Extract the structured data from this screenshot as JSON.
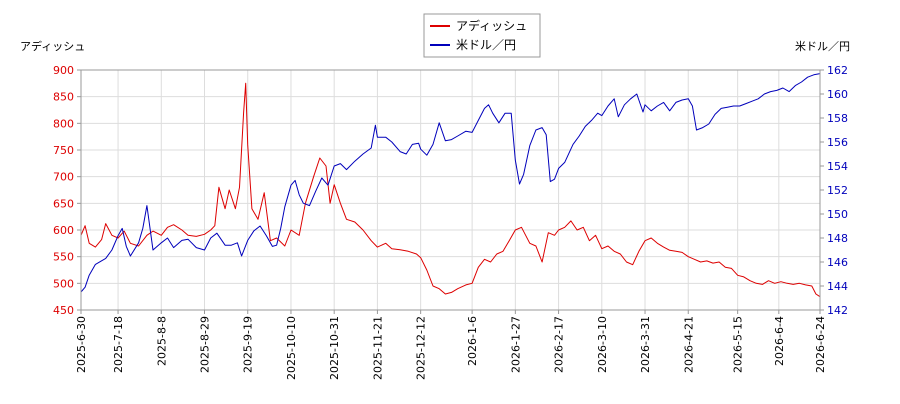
{
  "chart_data": {
    "type": "line",
    "legend": {
      "placement": "top-center",
      "entries": [
        {
          "name": "アディッシュ",
          "color": "#dd0000"
        },
        {
          "name": "米ドル／円",
          "color": "#0000bb"
        }
      ]
    },
    "left_axis": {
      "label": "アディッシュ",
      "range": [
        450,
        900
      ],
      "ticks": [
        450,
        500,
        550,
        600,
        650,
        700,
        750,
        800,
        850,
        900
      ],
      "tick_color": "#dd0000"
    },
    "right_axis": {
      "label": "米ドル／円",
      "range": [
        142,
        162
      ],
      "ticks": [
        142,
        144,
        146,
        148,
        150,
        152,
        154,
        156,
        158,
        160,
        162
      ],
      "tick_color": "#0000bb"
    },
    "x_axis": {
      "range": [
        "2025-06-30",
        "2026-06-24"
      ],
      "tick_labels": [
        "2025-6-30",
        "2025-7-18",
        "2025-8-8",
        "2025-8-29",
        "2025-9-19",
        "2025-10-10",
        "2025-10-31",
        "2025-11-21",
        "2025-12-12",
        "2026-1-6",
        "2026-1-27",
        "2026-2-17",
        "2026-3-10",
        "2026-3-31",
        "2026-4-21",
        "2026-5-15",
        "2026-6-4",
        "2026-6-24"
      ],
      "tick_dates": [
        "2025-06-30",
        "2025-07-18",
        "2025-08-08",
        "2025-08-29",
        "2025-09-19",
        "2025-10-10",
        "2025-10-31",
        "2025-11-21",
        "2025-12-12",
        "2026-01-06",
        "2026-01-27",
        "2026-02-17",
        "2026-03-10",
        "2026-03-31",
        "2026-04-21",
        "2026-05-15",
        "2026-06-04",
        "2026-06-24"
      ]
    },
    "grid": true,
    "series": [
      {
        "name": "アディッシュ",
        "axis": "left",
        "color": "#dd0000",
        "points": [
          [
            "2025-06-30",
            590
          ],
          [
            "2025-07-02",
            608
          ],
          [
            "2025-07-04",
            575
          ],
          [
            "2025-07-07",
            568
          ],
          [
            "2025-07-10",
            582
          ],
          [
            "2025-07-12",
            612
          ],
          [
            "2025-07-15",
            590
          ],
          [
            "2025-07-18",
            585
          ],
          [
            "2025-07-21",
            598
          ],
          [
            "2025-07-24",
            575
          ],
          [
            "2025-07-28",
            570
          ],
          [
            "2025-08-01",
            590
          ],
          [
            "2025-08-04",
            598
          ],
          [
            "2025-08-08",
            590
          ],
          [
            "2025-08-11",
            605
          ],
          [
            "2025-08-14",
            610
          ],
          [
            "2025-08-18",
            600
          ],
          [
            "2025-08-21",
            590
          ],
          [
            "2025-08-25",
            588
          ],
          [
            "2025-08-29",
            592
          ],
          [
            "2025-09-01",
            600
          ],
          [
            "2025-09-03",
            608
          ],
          [
            "2025-09-05",
            680
          ],
          [
            "2025-09-08",
            640
          ],
          [
            "2025-09-10",
            675
          ],
          [
            "2025-09-13",
            640
          ],
          [
            "2025-09-15",
            680
          ],
          [
            "2025-09-17",
            820
          ],
          [
            "2025-09-18",
            875
          ],
          [
            "2025-09-19",
            760
          ],
          [
            "2025-09-21",
            640
          ],
          [
            "2025-09-24",
            620
          ],
          [
            "2025-09-27",
            670
          ],
          [
            "2025-09-30",
            580
          ],
          [
            "2025-10-03",
            585
          ],
          [
            "2025-10-07",
            570
          ],
          [
            "2025-10-10",
            600
          ],
          [
            "2025-10-14",
            590
          ],
          [
            "2025-10-17",
            650
          ],
          [
            "2025-10-21",
            700
          ],
          [
            "2025-10-24",
            735
          ],
          [
            "2025-10-27",
            720
          ],
          [
            "2025-10-29",
            650
          ],
          [
            "2025-10-31",
            685
          ],
          [
            "2025-11-03",
            650
          ],
          [
            "2025-11-06",
            620
          ],
          [
            "2025-11-10",
            615
          ],
          [
            "2025-11-14",
            600
          ],
          [
            "2025-11-18",
            580
          ],
          [
            "2025-11-21",
            568
          ],
          [
            "2025-11-25",
            575
          ],
          [
            "2025-11-28",
            565
          ],
          [
            "2025-12-02",
            563
          ],
          [
            "2025-12-06",
            560
          ],
          [
            "2025-12-10",
            555
          ],
          [
            "2025-12-12",
            548
          ],
          [
            "2025-12-15",
            525
          ],
          [
            "2025-12-18",
            495
          ],
          [
            "2025-12-21",
            490
          ],
          [
            "2025-12-24",
            480
          ],
          [
            "2025-12-27",
            483
          ],
          [
            "2025-12-30",
            490
          ],
          [
            "2026-01-03",
            497
          ],
          [
            "2026-01-06",
            500
          ],
          [
            "2026-01-09",
            530
          ],
          [
            "2026-01-12",
            545
          ],
          [
            "2026-01-15",
            540
          ],
          [
            "2026-01-18",
            555
          ],
          [
            "2026-01-21",
            560
          ],
          [
            "2026-01-24",
            580
          ],
          [
            "2026-01-27",
            600
          ],
          [
            "2026-01-30",
            605
          ],
          [
            "2026-02-03",
            575
          ],
          [
            "2026-02-06",
            570
          ],
          [
            "2026-02-09",
            540
          ],
          [
            "2026-02-12",
            595
          ],
          [
            "2026-02-15",
            590
          ],
          [
            "2026-02-17",
            600
          ],
          [
            "2026-02-20",
            605
          ],
          [
            "2026-02-23",
            617
          ],
          [
            "2026-02-26",
            600
          ],
          [
            "2026-03-01",
            605
          ],
          [
            "2026-03-04",
            580
          ],
          [
            "2026-03-07",
            590
          ],
          [
            "2026-03-10",
            565
          ],
          [
            "2026-03-13",
            570
          ],
          [
            "2026-03-16",
            560
          ],
          [
            "2026-03-19",
            555
          ],
          [
            "2026-03-22",
            540
          ],
          [
            "2026-03-25",
            535
          ],
          [
            "2026-03-28",
            560
          ],
          [
            "2026-03-31",
            580
          ],
          [
            "2026-04-03",
            585
          ],
          [
            "2026-04-06",
            575
          ],
          [
            "2026-04-09",
            568
          ],
          [
            "2026-04-12",
            562
          ],
          [
            "2026-04-15",
            560
          ],
          [
            "2026-04-18",
            558
          ],
          [
            "2026-04-21",
            550
          ],
          [
            "2026-04-24",
            545
          ],
          [
            "2026-04-27",
            540
          ],
          [
            "2026-04-30",
            542
          ],
          [
            "2026-05-03",
            538
          ],
          [
            "2026-05-06",
            540
          ],
          [
            "2026-05-09",
            530
          ],
          [
            "2026-05-12",
            528
          ],
          [
            "2026-05-15",
            515
          ],
          [
            "2026-05-18",
            512
          ],
          [
            "2026-05-21",
            505
          ],
          [
            "2026-05-24",
            500
          ],
          [
            "2026-05-27",
            498
          ],
          [
            "2026-05-30",
            505
          ],
          [
            "2026-06-02",
            500
          ],
          [
            "2026-06-05",
            503
          ],
          [
            "2026-06-08",
            500
          ],
          [
            "2026-06-11",
            498
          ],
          [
            "2026-06-14",
            500
          ],
          [
            "2026-06-17",
            497
          ],
          [
            "2026-06-20",
            495
          ],
          [
            "2026-06-22",
            480
          ],
          [
            "2026-06-24",
            475
          ],
          [
            "2026-06-26",
            485
          ]
        ]
      },
      {
        "name": "米ドル／円",
        "axis": "right",
        "color": "#0000bb",
        "points": [
          [
            "2025-06-30",
            143.5
          ],
          [
            "2025-07-02",
            143.9
          ],
          [
            "2025-07-04",
            144.9
          ],
          [
            "2025-07-07",
            145.8
          ],
          [
            "2025-07-10",
            146.1
          ],
          [
            "2025-07-12",
            146.3
          ],
          [
            "2025-07-15",
            147.0
          ],
          [
            "2025-07-18",
            148.2
          ],
          [
            "2025-07-20",
            148.8
          ],
          [
            "2025-07-22",
            147.3
          ],
          [
            "2025-07-24",
            146.5
          ],
          [
            "2025-07-28",
            147.6
          ],
          [
            "2025-07-30",
            148.8
          ],
          [
            "2025-08-01",
            150.7
          ],
          [
            "2025-08-04",
            147.0
          ],
          [
            "2025-08-08",
            147.6
          ],
          [
            "2025-08-11",
            148.0
          ],
          [
            "2025-08-14",
            147.2
          ],
          [
            "2025-08-18",
            147.8
          ],
          [
            "2025-08-21",
            147.9
          ],
          [
            "2025-08-25",
            147.2
          ],
          [
            "2025-08-29",
            147.0
          ],
          [
            "2025-09-01",
            148.0
          ],
          [
            "2025-09-04",
            148.4
          ],
          [
            "2025-09-08",
            147.4
          ],
          [
            "2025-09-11",
            147.4
          ],
          [
            "2025-09-14",
            147.6
          ],
          [
            "2025-09-16",
            146.5
          ],
          [
            "2025-09-19",
            147.8
          ],
          [
            "2025-09-22",
            148.6
          ],
          [
            "2025-09-25",
            149.0
          ],
          [
            "2025-09-28",
            148.2
          ],
          [
            "2025-10-01",
            147.3
          ],
          [
            "2025-10-03",
            147.4
          ],
          [
            "2025-10-05",
            148.8
          ],
          [
            "2025-10-07",
            150.6
          ],
          [
            "2025-10-10",
            152.4
          ],
          [
            "2025-10-12",
            152.8
          ],
          [
            "2025-10-14",
            151.6
          ],
          [
            "2025-10-16",
            150.9
          ],
          [
            "2025-10-19",
            150.7
          ],
          [
            "2025-10-22",
            151.9
          ],
          [
            "2025-10-25",
            153.0
          ],
          [
            "2025-10-28",
            152.4
          ],
          [
            "2025-10-31",
            154.0
          ],
          [
            "2025-11-03",
            154.2
          ],
          [
            "2025-11-06",
            153.7
          ],
          [
            "2025-11-10",
            154.4
          ],
          [
            "2025-11-14",
            155.0
          ],
          [
            "2025-11-18",
            155.5
          ],
          [
            "2025-11-20",
            157.4
          ],
          [
            "2025-11-21",
            156.4
          ],
          [
            "2025-11-25",
            156.4
          ],
          [
            "2025-11-28",
            156.0
          ],
          [
            "2025-12-02",
            155.2
          ],
          [
            "2025-12-05",
            155.0
          ],
          [
            "2025-12-08",
            155.8
          ],
          [
            "2025-12-11",
            155.9
          ],
          [
            "2025-12-12",
            155.4
          ],
          [
            "2025-12-15",
            154.9
          ],
          [
            "2025-12-18",
            155.8
          ],
          [
            "2025-12-21",
            157.6
          ],
          [
            "2025-12-24",
            156.1
          ],
          [
            "2025-12-27",
            156.2
          ],
          [
            "2025-12-30",
            156.5
          ],
          [
            "2026-01-03",
            156.9
          ],
          [
            "2026-01-06",
            156.8
          ],
          [
            "2026-01-09",
            157.8
          ],
          [
            "2026-01-12",
            158.8
          ],
          [
            "2026-01-14",
            159.1
          ],
          [
            "2026-01-16",
            158.4
          ],
          [
            "2026-01-19",
            157.6
          ],
          [
            "2026-01-22",
            158.4
          ],
          [
            "2026-01-25",
            158.4
          ],
          [
            "2026-01-27",
            154.5
          ],
          [
            "2026-01-29",
            152.5
          ],
          [
            "2026-01-31",
            153.3
          ],
          [
            "2026-02-03",
            155.7
          ],
          [
            "2026-02-06",
            157.0
          ],
          [
            "2026-02-09",
            157.2
          ],
          [
            "2026-02-11",
            156.6
          ],
          [
            "2026-02-13",
            152.7
          ],
          [
            "2026-02-15",
            152.9
          ],
          [
            "2026-02-17",
            153.8
          ],
          [
            "2026-02-20",
            154.3
          ],
          [
            "2026-02-24",
            155.8
          ],
          [
            "2026-02-27",
            156.5
          ],
          [
            "2026-03-02",
            157.3
          ],
          [
            "2026-03-05",
            157.8
          ],
          [
            "2026-03-08",
            158.4
          ],
          [
            "2026-03-10",
            158.2
          ],
          [
            "2026-03-13",
            159.0
          ],
          [
            "2026-03-16",
            159.6
          ],
          [
            "2026-03-18",
            158.1
          ],
          [
            "2026-03-21",
            159.1
          ],
          [
            "2026-03-24",
            159.6
          ],
          [
            "2026-03-27",
            160.0
          ],
          [
            "2026-03-30",
            158.5
          ],
          [
            "2026-03-31",
            159.1
          ],
          [
            "2026-04-03",
            158.6
          ],
          [
            "2026-04-06",
            159.0
          ],
          [
            "2026-04-09",
            159.3
          ],
          [
            "2026-04-12",
            158.6
          ],
          [
            "2026-04-15",
            159.3
          ],
          [
            "2026-04-18",
            159.5
          ],
          [
            "2026-04-21",
            159.6
          ],
          [
            "2026-04-23",
            159.0
          ],
          [
            "2026-04-25",
            157.0
          ],
          [
            "2026-04-28",
            157.2
          ],
          [
            "2026-05-01",
            157.5
          ],
          [
            "2026-05-04",
            158.3
          ],
          [
            "2026-05-07",
            158.8
          ],
          [
            "2026-05-10",
            158.9
          ],
          [
            "2026-05-13",
            159.0
          ],
          [
            "2026-05-16",
            159.0
          ],
          [
            "2026-05-19",
            159.2
          ],
          [
            "2026-05-22",
            159.4
          ],
          [
            "2026-05-25",
            159.6
          ],
          [
            "2026-05-28",
            160.0
          ],
          [
            "2026-05-31",
            160.2
          ],
          [
            "2026-06-03",
            160.3
          ],
          [
            "2026-06-06",
            160.5
          ],
          [
            "2026-06-09",
            160.2
          ],
          [
            "2026-06-12",
            160.7
          ],
          [
            "2026-06-15",
            161.0
          ],
          [
            "2026-06-18",
            161.4
          ],
          [
            "2026-06-21",
            161.6
          ],
          [
            "2026-06-24",
            161.7
          ],
          [
            "2026-06-26",
            161.8
          ]
        ]
      }
    ]
  }
}
